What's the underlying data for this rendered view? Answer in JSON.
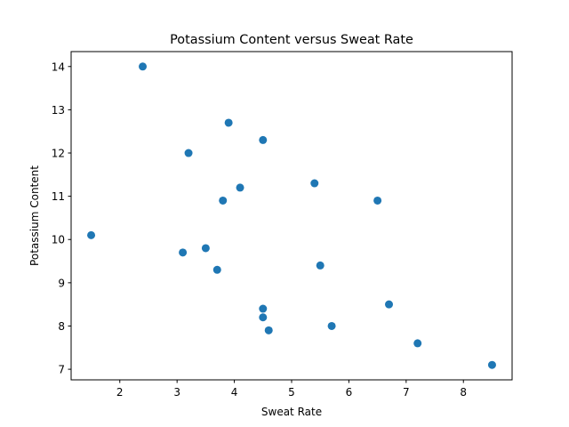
{
  "chart_data": {
    "type": "scatter",
    "title": "Potassium Content versus Sweat Rate",
    "xlabel": "Sweat Rate",
    "ylabel": "Potassium Content",
    "xlim": [
      1.15,
      8.85
    ],
    "ylim": [
      6.755,
      14.345
    ],
    "xticks": [
      2,
      3,
      4,
      5,
      6,
      7,
      8
    ],
    "yticks": [
      7,
      8,
      9,
      10,
      11,
      12,
      13,
      14
    ],
    "grid": false,
    "marker_color": "#1f77b4",
    "points": [
      {
        "x": 2.4,
        "y": 14.0
      },
      {
        "x": 3.9,
        "y": 12.7
      },
      {
        "x": 4.5,
        "y": 12.3
      },
      {
        "x": 3.2,
        "y": 12.0
      },
      {
        "x": 5.4,
        "y": 11.3
      },
      {
        "x": 4.1,
        "y": 11.2
      },
      {
        "x": 3.8,
        "y": 10.9
      },
      {
        "x": 6.5,
        "y": 10.9
      },
      {
        "x": 1.5,
        "y": 10.1
      },
      {
        "x": 3.5,
        "y": 9.8
      },
      {
        "x": 3.1,
        "y": 9.7
      },
      {
        "x": 5.5,
        "y": 9.4
      },
      {
        "x": 3.7,
        "y": 9.3
      },
      {
        "x": 6.7,
        "y": 8.5
      },
      {
        "x": 4.5,
        "y": 8.4
      },
      {
        "x": 4.5,
        "y": 8.2
      },
      {
        "x": 5.7,
        "y": 8.0
      },
      {
        "x": 4.6,
        "y": 7.9
      },
      {
        "x": 7.2,
        "y": 7.6
      },
      {
        "x": 8.5,
        "y": 7.1
      }
    ]
  }
}
